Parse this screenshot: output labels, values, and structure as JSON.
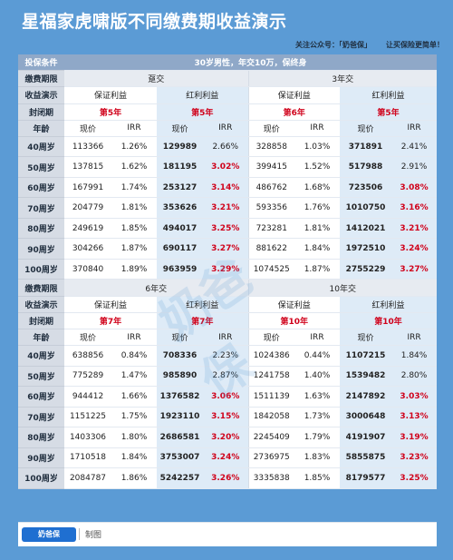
{
  "title": "星福家虎啸版不同缴费期收益演示",
  "subline": {
    "follow": "关注公众号：「奶爸保」",
    "slogan": "让买保险更简单！"
  },
  "labels": {
    "condition": "投保条件",
    "pay_period": "缴费期限",
    "demo": "收益演示",
    "closed": "封闭期",
    "age": "年龄",
    "guaranteed": "保证利益",
    "dividend": "红利利益",
    "cash_value": "现价",
    "irr": "IRR"
  },
  "condition_text": "30岁男性，年交10万，保终身",
  "sections": [
    {
      "periods": [
        {
          "name": "趸交",
          "closed_guaranteed": "第5年",
          "closed_dividend": "第5年"
        },
        {
          "name": "3年交",
          "closed_guaranteed": "第6年",
          "closed_dividend": "第5年"
        }
      ],
      "rows": [
        {
          "age": "40周岁",
          "cells": [
            "113366",
            "1.26%",
            "129989",
            "2.66%",
            "328858",
            "1.03%",
            "371891",
            "2.41%"
          ]
        },
        {
          "age": "50周岁",
          "cells": [
            "137815",
            "1.62%",
            "181195",
            "3.02%",
            "399415",
            "1.52%",
            "517988",
            "2.91%"
          ]
        },
        {
          "age": "60周岁",
          "cells": [
            "167991",
            "1.74%",
            "253127",
            "3.14%",
            "486762",
            "1.68%",
            "723506",
            "3.08%"
          ]
        },
        {
          "age": "70周岁",
          "cells": [
            "204779",
            "1.81%",
            "353626",
            "3.21%",
            "593356",
            "1.76%",
            "1010750",
            "3.16%"
          ]
        },
        {
          "age": "80周岁",
          "cells": [
            "249619",
            "1.85%",
            "494017",
            "3.25%",
            "723281",
            "1.81%",
            "1412021",
            "3.21%"
          ]
        },
        {
          "age": "90周岁",
          "cells": [
            "304266",
            "1.87%",
            "690117",
            "3.27%",
            "881622",
            "1.84%",
            "1972510",
            "3.24%"
          ]
        },
        {
          "age": "100周岁",
          "cells": [
            "370840",
            "1.89%",
            "963959",
            "3.29%",
            "1074525",
            "1.87%",
            "2755229",
            "3.27%"
          ]
        }
      ]
    },
    {
      "periods": [
        {
          "name": "6年交",
          "closed_guaranteed": "第7年",
          "closed_dividend": "第7年"
        },
        {
          "name": "10年交",
          "closed_guaranteed": "第10年",
          "closed_dividend": "第10年"
        }
      ],
      "rows": [
        {
          "age": "40周岁",
          "cells": [
            "638856",
            "0.84%",
            "708336",
            "2.23%",
            "1024386",
            "0.44%",
            "1107215",
            "1.84%"
          ]
        },
        {
          "age": "50周岁",
          "cells": [
            "775289",
            "1.47%",
            "985890",
            "2.87%",
            "1241758",
            "1.40%",
            "1539482",
            "2.80%"
          ]
        },
        {
          "age": "60周岁",
          "cells": [
            "944412",
            "1.66%",
            "1376582",
            "3.06%",
            "1511139",
            "1.63%",
            "2147892",
            "3.03%"
          ]
        },
        {
          "age": "70周岁",
          "cells": [
            "1151225",
            "1.75%",
            "1923110",
            "3.15%",
            "1842058",
            "1.73%",
            "3000648",
            "3.13%"
          ]
        },
        {
          "age": "80周岁",
          "cells": [
            "1403306",
            "1.80%",
            "2686581",
            "3.20%",
            "2245409",
            "1.79%",
            "4191907",
            "3.19%"
          ]
        },
        {
          "age": "90周岁",
          "cells": [
            "1710518",
            "1.84%",
            "3753007",
            "3.24%",
            "2736975",
            "1.83%",
            "5855875",
            "3.23%"
          ]
        },
        {
          "age": "100周岁",
          "cells": [
            "2084787",
            "1.86%",
            "5242257",
            "3.26%",
            "3335838",
            "1.85%",
            "8179577",
            "3.25%"
          ]
        }
      ]
    }
  ],
  "footer": {
    "logo_text": "奶爸保",
    "text": "制图"
  },
  "watermark": {
    "text": "奶爸保"
  },
  "colors": {
    "background": "#5b9bd5",
    "highlight": "#d0021b",
    "blue_column": "#deebf7"
  }
}
